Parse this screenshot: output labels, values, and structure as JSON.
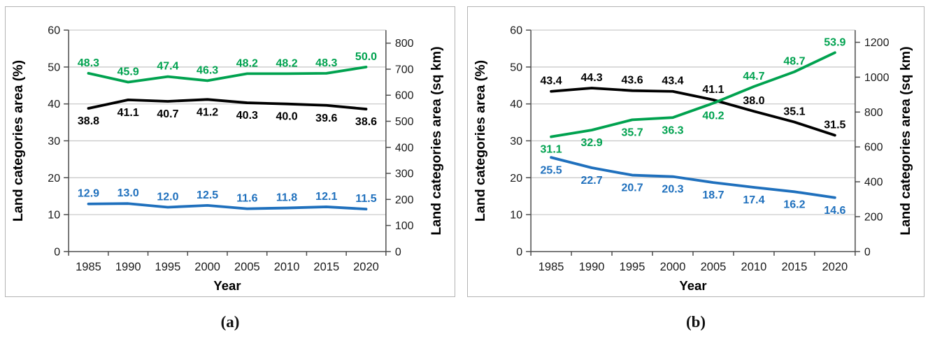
{
  "captions": [
    "(a)",
    "(b)"
  ],
  "colors": {
    "grid": "#c6c6c6",
    "axis": "#4d4d4d",
    "tick_text": "#1a1a1a",
    "green": "#00a24f",
    "black": "#000000",
    "blue": "#1f70bd"
  },
  "chart_data": [
    {
      "type": "line",
      "title": "",
      "x": {
        "label": "Year",
        "categories": [
          "1985",
          "1990",
          "1995",
          "2000",
          "2005",
          "2010",
          "2015",
          "2020"
        ]
      },
      "y_left": {
        "label": "Land categories area  (%)",
        "min": 0,
        "max": 60,
        "ticks": [
          0,
          10,
          20,
          30,
          40,
          50,
          60
        ]
      },
      "y_right": {
        "label": "Land categories area (sq km)",
        "min": 0,
        "plot_max": 850,
        "ticks": [
          0,
          100,
          200,
          300,
          400,
          500,
          600,
          700,
          800
        ]
      },
      "grid": true,
      "legend": "none",
      "series": [
        {
          "name": "green",
          "color": "#00a24f",
          "values": [
            48.3,
            45.9,
            47.4,
            46.3,
            48.2,
            48.2,
            48.3,
            50.0
          ],
          "label_positions": [
            "above",
            "above",
            "above",
            "above",
            "above",
            "above",
            "above",
            "above"
          ]
        },
        {
          "name": "black",
          "color": "#000000",
          "values": [
            38.8,
            41.1,
            40.7,
            41.2,
            40.3,
            40.0,
            39.6,
            38.6
          ],
          "label_positions": [
            "below",
            "below",
            "below",
            "below",
            "below",
            "below",
            "below",
            "below"
          ]
        },
        {
          "name": "blue",
          "color": "#1f70bd",
          "values": [
            12.9,
            13.0,
            12.0,
            12.5,
            11.6,
            11.8,
            12.1,
            11.5
          ],
          "label_positions": [
            "above",
            "above",
            "above",
            "above",
            "above",
            "above",
            "above",
            "above"
          ]
        }
      ]
    },
    {
      "type": "line",
      "title": "",
      "x": {
        "label": "Year",
        "categories": [
          "1985",
          "1990",
          "1995",
          "2000",
          "2005",
          "2010",
          "2015",
          "2020"
        ]
      },
      "y_left": {
        "label": "Land categories area (%)",
        "min": 0,
        "max": 60,
        "ticks": [
          0,
          10,
          20,
          30,
          40,
          50,
          60
        ]
      },
      "y_right": {
        "label": "Land categories area (sq km)",
        "min": 0,
        "plot_max": 1270,
        "ticks": [
          0,
          200,
          400,
          600,
          800,
          1000,
          1200
        ]
      },
      "grid": true,
      "legend": "none",
      "series": [
        {
          "name": "black",
          "color": "#000000",
          "values": [
            43.4,
            44.3,
            43.6,
            43.4,
            41.1,
            38.0,
            35.1,
            31.5
          ],
          "label_positions": [
            "above",
            "above",
            "above",
            "above",
            "above",
            "above",
            "above",
            "above"
          ]
        },
        {
          "name": "green",
          "color": "#00a24f",
          "values": [
            31.1,
            32.9,
            35.7,
            36.3,
            40.2,
            44.7,
            48.7,
            53.9
          ],
          "label_positions": [
            "below",
            "below",
            "below",
            "below",
            "below",
            "above",
            "above",
            "above"
          ]
        },
        {
          "name": "blue",
          "color": "#1f70bd",
          "values": [
            25.5,
            22.7,
            20.7,
            20.3,
            18.7,
            17.4,
            16.2,
            14.6
          ],
          "label_positions": [
            "below",
            "below",
            "below",
            "below",
            "below",
            "below",
            "below",
            "below"
          ]
        }
      ]
    }
  ]
}
